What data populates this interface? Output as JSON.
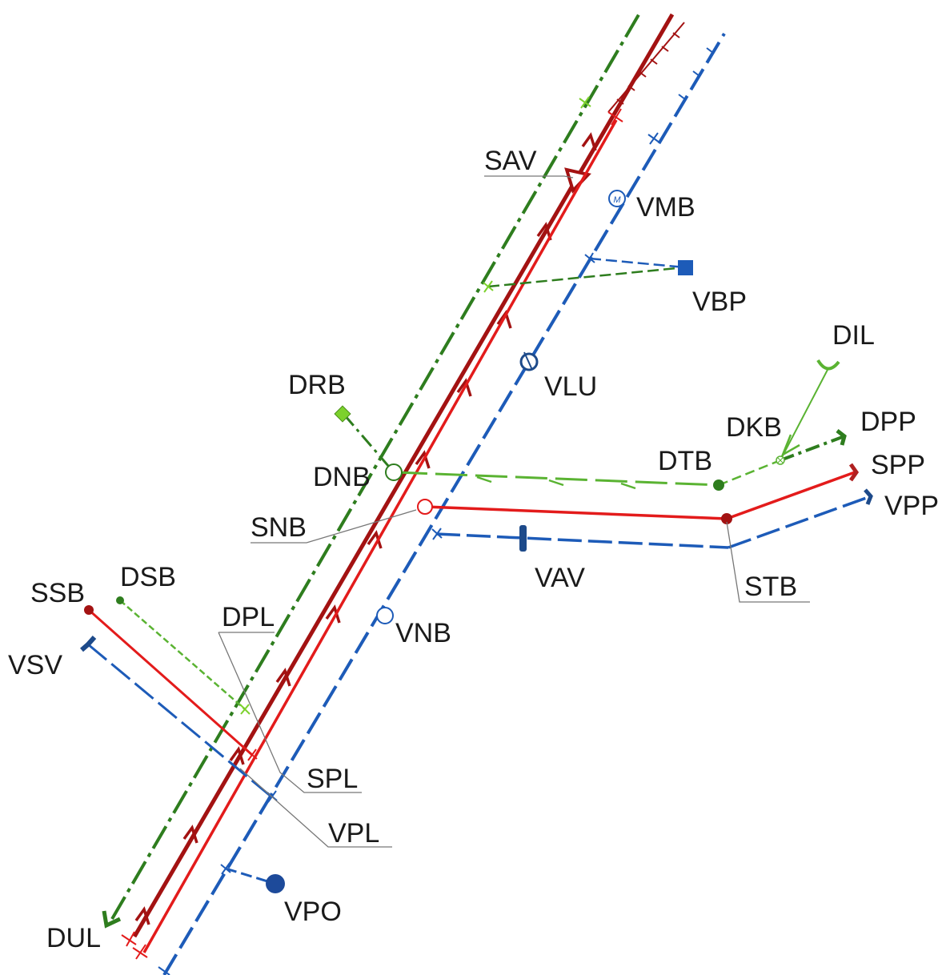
{
  "labels": {
    "SAV": "SAV",
    "VMB": "VMB",
    "VBP": "VBP",
    "DIL": "DIL",
    "DRB": "DRB",
    "VLU": "VLU",
    "DKB": "DKB",
    "DPP": "DPP",
    "DTB": "DTB",
    "SPP": "SPP",
    "DNB": "DNB",
    "VPP": "VPP",
    "SNB": "SNB",
    "VAV": "VAV",
    "STB": "STB",
    "SSB": "SSB",
    "DSB": "DSB",
    "DPL": "DPL",
    "VNB": "VNB",
    "VSV": "VSV",
    "SPL": "SPL",
    "VPL": "VPL",
    "VPO": "VPO",
    "DUL": "DUL"
  },
  "colors": {
    "red": "#e31b1b",
    "dark_red": "#a31212",
    "blue": "#1d5bb8",
    "dark_green": "#2e7d1e",
    "light_green": "#5ab332",
    "leader": "#777777"
  }
}
